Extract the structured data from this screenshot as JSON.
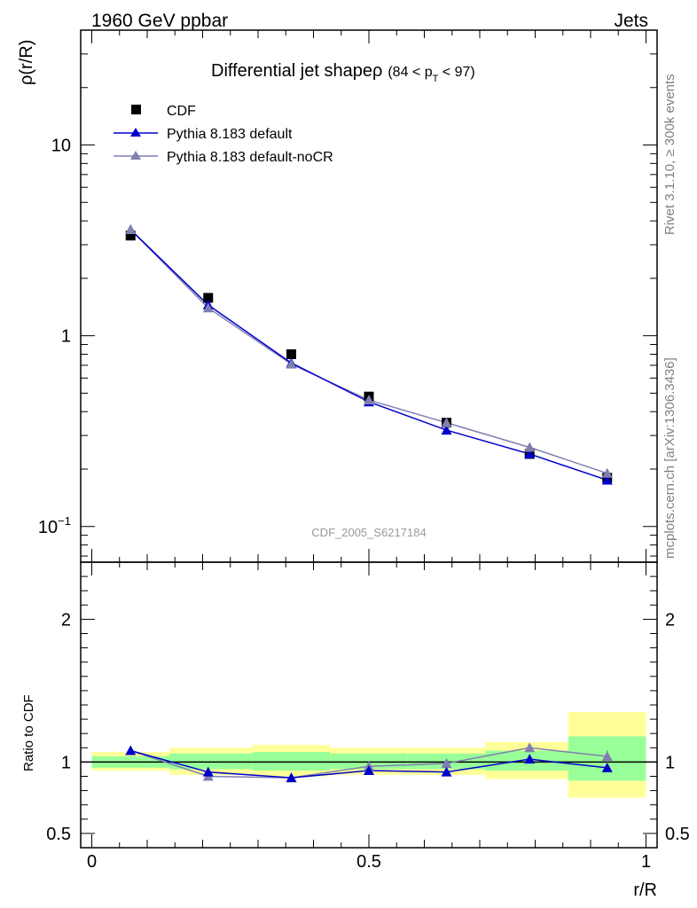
{
  "header": {
    "left_label": "1960 GeV ppbar",
    "right_label": "Jets"
  },
  "title": {
    "main": "Differential jet shapeρ",
    "cut_open": "(84 < p",
    "cut_sub": "T",
    "cut_close": " < 97)"
  },
  "side_labels": {
    "rivet": "Rivet 3.1.10, ≥ 300k events",
    "mcplots": "mcplots.cern.ch [arXiv:1306.3436]"
  },
  "analysis_id": "CDF_2005_S6217184",
  "colors": {
    "data": "#000000",
    "default": "#0000cc",
    "nocr": "#7f7fb0",
    "band_inner": "#99ff99",
    "band_outer": "#ffff99"
  },
  "chart_data": [
    {
      "type": "line",
      "panel": "main",
      "xlabel": "r/R",
      "ylabel": "ρ(r/R)",
      "yscale": "log",
      "xlim": [
        -0.02,
        1.02
      ],
      "ylim": [
        0.065,
        40
      ],
      "y_ticks": [
        {
          "value": 0.1,
          "label": "10",
          "exp": "−1"
        },
        {
          "value": 1,
          "label": "1"
        },
        {
          "value": 10,
          "label": "10"
        }
      ],
      "legend_position": "top-left",
      "x": [
        0.07,
        0.21,
        0.36,
        0.5,
        0.64,
        0.79,
        0.93
      ],
      "series": [
        {
          "name": "CDF",
          "marker": "square",
          "values": [
            3.35,
            1.58,
            0.8,
            0.48,
            0.35,
            0.24,
            0.18
          ]
        },
        {
          "name": "Pythia 8.183 default",
          "marker": "triangle",
          "values": [
            3.6,
            1.45,
            0.72,
            0.45,
            0.32,
            0.24,
            0.175
          ]
        },
        {
          "name": "Pythia 8.183 default-noCR",
          "marker": "triangle",
          "values": [
            3.6,
            1.4,
            0.71,
            0.46,
            0.35,
            0.26,
            0.19
          ]
        }
      ]
    },
    {
      "type": "line",
      "panel": "ratio",
      "xlabel": "r/R",
      "ylabel": "Ratio to CDF",
      "xlim": [
        -0.02,
        1.02
      ],
      "ylim": [
        0.4,
        2.4
      ],
      "y_ticks": [
        {
          "value": 0.5,
          "label": "0.5"
        },
        {
          "value": 1,
          "label": "1"
        },
        {
          "value": 2,
          "label": "2"
        }
      ],
      "x_ticks": [
        {
          "value": 0,
          "label": "0"
        },
        {
          "value": 0.5,
          "label": "0.5"
        },
        {
          "value": 1,
          "label": "1"
        }
      ],
      "x": [
        0.07,
        0.21,
        0.36,
        0.5,
        0.64,
        0.79,
        0.93
      ],
      "uncertainty_bands": {
        "bins": [
          [
            0.0,
            0.14
          ],
          [
            0.14,
            0.29
          ],
          [
            0.29,
            0.43
          ],
          [
            0.43,
            0.57
          ],
          [
            0.57,
            0.71
          ],
          [
            0.71,
            0.86
          ],
          [
            0.86,
            1.0
          ]
        ],
        "inner_lo": [
          0.96,
          0.95,
          0.94,
          0.95,
          0.95,
          0.94,
          0.87
        ],
        "inner_hi": [
          1.04,
          1.06,
          1.07,
          1.06,
          1.06,
          1.08,
          1.18
        ],
        "outer_lo": [
          0.94,
          0.91,
          0.9,
          0.91,
          0.91,
          0.88,
          0.75
        ],
        "outer_hi": [
          1.07,
          1.1,
          1.12,
          1.1,
          1.1,
          1.14,
          1.35
        ]
      },
      "series": [
        {
          "name": "Pythia 8.183 default",
          "values": [
            1.08,
            0.93,
            0.89,
            0.94,
            0.93,
            1.02,
            0.96
          ],
          "errors": [
            0.01,
            0.01,
            0.01,
            0.01,
            0.01,
            0.02,
            0.02
          ]
        },
        {
          "name": "Pythia 8.183 default-noCR",
          "values": [
            1.08,
            0.9,
            0.89,
            0.97,
            0.99,
            1.1,
            1.04
          ],
          "errors": [
            0.01,
            0.01,
            0.01,
            0.02,
            0.03,
            0.03,
            0.04
          ]
        }
      ]
    }
  ]
}
